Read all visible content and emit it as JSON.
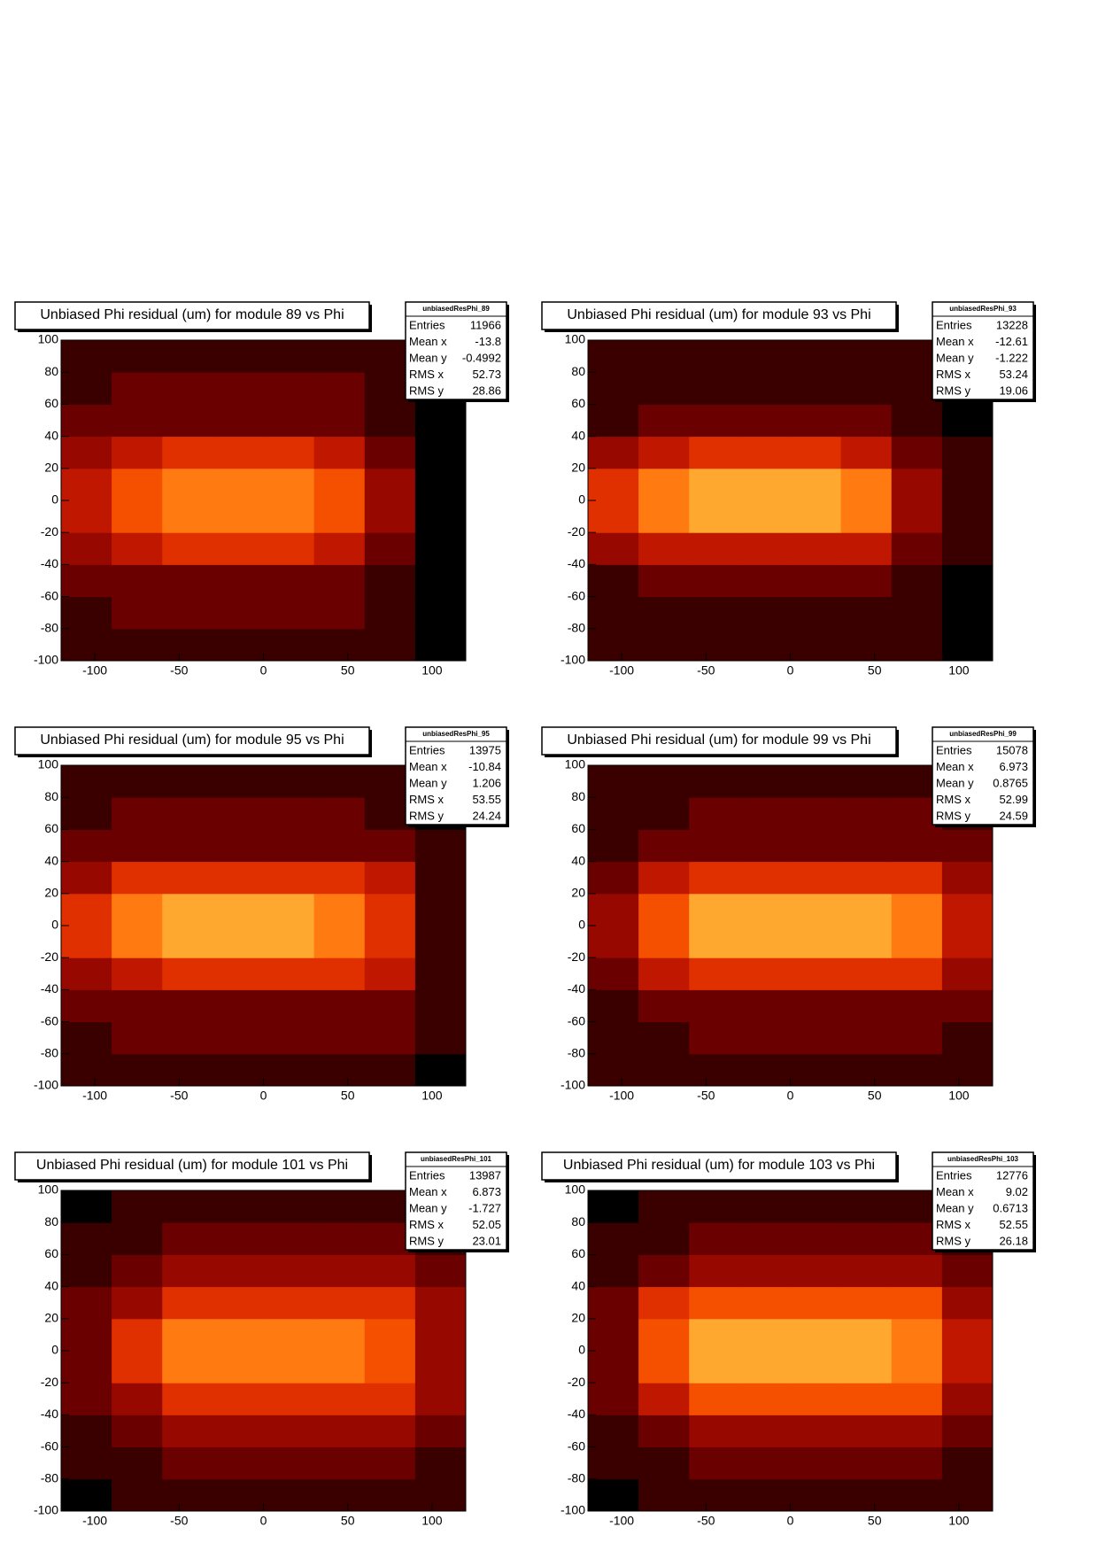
{
  "colormap": [
    "#000000",
    "#3a0000",
    "#6a0000",
    "#960800",
    "#c01800",
    "#e03000",
    "#f55000",
    "#ff7a10",
    "#ffa830",
    "#ffd860"
  ],
  "chart_data": [
    {
      "type": "heatmap",
      "title": "Unbiased Phi residual (um) for module 89 vs Phi",
      "xlim": [
        -120,
        120
      ],
      "ylim": [
        -100,
        100
      ],
      "xticks": [
        -100,
        -50,
        0,
        50,
        100
      ],
      "yticks": [
        -100,
        -80,
        -60,
        -40,
        -20,
        0,
        20,
        40,
        60,
        80,
        100
      ],
      "xbins": [
        -120,
        -90,
        -60,
        -30,
        0,
        30,
        60,
        90,
        120
      ],
      "ybins": [
        -100,
        -80,
        -60,
        -40,
        -20,
        0,
        20,
        40,
        60,
        80,
        100
      ],
      "z": [
        [
          1,
          1,
          1,
          1,
          1,
          1,
          1,
          0
        ],
        [
          1,
          2,
          2,
          2,
          2,
          2,
          1,
          0
        ],
        [
          2,
          2,
          2,
          2,
          2,
          2,
          1,
          0
        ],
        [
          3,
          4,
          5,
          5,
          5,
          4,
          2,
          0
        ],
        [
          4,
          6,
          7,
          7,
          7,
          6,
          3,
          0
        ],
        [
          4,
          6,
          7,
          7,
          7,
          6,
          3,
          0
        ],
        [
          3,
          4,
          5,
          5,
          5,
          4,
          2,
          0
        ],
        [
          2,
          2,
          2,
          2,
          2,
          2,
          1,
          0
        ],
        [
          1,
          2,
          2,
          2,
          2,
          2,
          1,
          0
        ],
        [
          1,
          1,
          1,
          1,
          1,
          1,
          1,
          0
        ]
      ],
      "stats": {
        "name": "unbiasedResPhi_89",
        "rows": [
          {
            "label": "Entries",
            "value": 11966
          },
          {
            "label": "Mean x",
            "value": -13.8
          },
          {
            "label": "Mean y",
            "value": -0.4992
          },
          {
            "label": "RMS x",
            "value": 52.73
          },
          {
            "label": "RMS y",
            "value": 28.86
          }
        ]
      }
    },
    {
      "type": "heatmap",
      "title": "Unbiased Phi residual (um) for module 93 vs Phi",
      "xlim": [
        -120,
        120
      ],
      "ylim": [
        -100,
        100
      ],
      "xticks": [
        -100,
        -50,
        0,
        50,
        100
      ],
      "yticks": [
        -100,
        -80,
        -60,
        -40,
        -20,
        0,
        20,
        40,
        60,
        80,
        100
      ],
      "xbins": [
        -120,
        -90,
        -60,
        -30,
        0,
        30,
        60,
        90,
        120
      ],
      "ybins": [
        -100,
        -80,
        -60,
        -40,
        -20,
        0,
        20,
        40,
        60,
        80,
        100
      ],
      "z": [
        [
          1,
          1,
          1,
          1,
          1,
          1,
          1,
          0
        ],
        [
          1,
          1,
          1,
          1,
          1,
          1,
          1,
          0
        ],
        [
          1,
          2,
          2,
          2,
          2,
          2,
          1,
          0
        ],
        [
          3,
          4,
          4,
          4,
          4,
          4,
          2,
          1
        ],
        [
          5,
          7,
          8,
          8,
          8,
          7,
          3,
          1
        ],
        [
          5,
          7,
          8,
          8,
          8,
          7,
          3,
          1
        ],
        [
          3,
          4,
          5,
          5,
          5,
          4,
          2,
          1
        ],
        [
          1,
          2,
          2,
          2,
          2,
          2,
          1,
          0
        ],
        [
          1,
          1,
          1,
          1,
          1,
          1,
          1,
          0
        ],
        [
          1,
          1,
          1,
          1,
          1,
          1,
          1,
          0
        ]
      ],
      "stats": {
        "name": "unbiasedResPhi_93",
        "rows": [
          {
            "label": "Entries",
            "value": 13228
          },
          {
            "label": "Mean x",
            "value": -12.61
          },
          {
            "label": "Mean y",
            "value": -1.222
          },
          {
            "label": "RMS x",
            "value": 53.24
          },
          {
            "label": "RMS y",
            "value": 19.06
          }
        ]
      }
    },
    {
      "type": "heatmap",
      "title": "Unbiased Phi residual (um) for module 95 vs Phi",
      "xlim": [
        -120,
        120
      ],
      "ylim": [
        -100,
        100
      ],
      "xticks": [
        -100,
        -50,
        0,
        50,
        100
      ],
      "yticks": [
        -100,
        -80,
        -60,
        -40,
        -20,
        0,
        20,
        40,
        60,
        80,
        100
      ],
      "xbins": [
        -120,
        -90,
        -60,
        -30,
        0,
        30,
        60,
        90,
        120
      ],
      "ybins": [
        -100,
        -80,
        -60,
        -40,
        -20,
        0,
        20,
        40,
        60,
        80,
        100
      ],
      "z": [
        [
          1,
          1,
          1,
          1,
          1,
          1,
          1,
          0
        ],
        [
          1,
          2,
          2,
          2,
          2,
          2,
          2,
          1
        ],
        [
          2,
          2,
          2,
          2,
          2,
          2,
          2,
          1
        ],
        [
          3,
          4,
          5,
          5,
          5,
          5,
          4,
          1
        ],
        [
          5,
          7,
          8,
          8,
          8,
          7,
          5,
          1
        ],
        [
          5,
          7,
          8,
          8,
          8,
          7,
          5,
          1
        ],
        [
          3,
          5,
          5,
          5,
          5,
          5,
          4,
          1
        ],
        [
          2,
          2,
          2,
          2,
          2,
          2,
          2,
          1
        ],
        [
          1,
          2,
          2,
          2,
          2,
          2,
          1,
          0
        ],
        [
          1,
          1,
          1,
          1,
          1,
          1,
          1,
          0
        ]
      ],
      "stats": {
        "name": "unbiasedResPhi_95",
        "rows": [
          {
            "label": "Entries",
            "value": 13975
          },
          {
            "label": "Mean x",
            "value": -10.84
          },
          {
            "label": "Mean y",
            "value": 1.206
          },
          {
            "label": "RMS x",
            "value": 53.55
          },
          {
            "label": "RMS y",
            "value": 24.24
          }
        ]
      }
    },
    {
      "type": "heatmap",
      "title": "Unbiased Phi residual (um) for module 99 vs Phi",
      "xlim": [
        -120,
        120
      ],
      "ylim": [
        -100,
        100
      ],
      "xticks": [
        -100,
        -50,
        0,
        50,
        100
      ],
      "yticks": [
        -100,
        -80,
        -60,
        -40,
        -20,
        0,
        20,
        40,
        60,
        80,
        100
      ],
      "xbins": [
        -120,
        -90,
        -60,
        -30,
        0,
        30,
        60,
        90,
        120
      ],
      "ybins": [
        -100,
        -80,
        -60,
        -40,
        -20,
        0,
        20,
        40,
        60,
        80,
        100
      ],
      "z": [
        [
          1,
          1,
          1,
          1,
          1,
          1,
          1,
          1
        ],
        [
          1,
          1,
          2,
          2,
          2,
          2,
          2,
          1
        ],
        [
          1,
          2,
          2,
          2,
          2,
          2,
          2,
          2
        ],
        [
          2,
          4,
          5,
          5,
          5,
          5,
          5,
          3
        ],
        [
          3,
          6,
          8,
          8,
          8,
          8,
          7,
          4
        ],
        [
          3,
          6,
          8,
          8,
          8,
          8,
          7,
          4
        ],
        [
          2,
          4,
          5,
          5,
          5,
          5,
          5,
          3
        ],
        [
          1,
          2,
          2,
          2,
          2,
          2,
          2,
          2
        ],
        [
          1,
          1,
          2,
          2,
          2,
          2,
          2,
          1
        ],
        [
          1,
          1,
          1,
          1,
          1,
          1,
          1,
          1
        ]
      ],
      "stats": {
        "name": "unbiasedResPhi_99",
        "rows": [
          {
            "label": "Entries",
            "value": 15078
          },
          {
            "label": "Mean x",
            "value": 6.973
          },
          {
            "label": "Mean y",
            "value": 0.8765
          },
          {
            "label": "RMS x",
            "value": 52.99
          },
          {
            "label": "RMS y",
            "value": 24.59
          }
        ]
      }
    },
    {
      "type": "heatmap",
      "title": "Unbiased Phi residual (um) for module 101 vs Phi",
      "xlim": [
        -120,
        120
      ],
      "ylim": [
        -100,
        100
      ],
      "xticks": [
        -100,
        -50,
        0,
        50,
        100
      ],
      "yticks": [
        -100,
        -80,
        -60,
        -40,
        -20,
        0,
        20,
        40,
        60,
        80,
        100
      ],
      "xbins": [
        -120,
        -90,
        -60,
        -30,
        0,
        30,
        60,
        90,
        120
      ],
      "ybins": [
        -100,
        -80,
        -60,
        -40,
        -20,
        0,
        20,
        40,
        60,
        80,
        100
      ],
      "z": [
        [
          0,
          1,
          1,
          1,
          1,
          1,
          1,
          1
        ],
        [
          1,
          1,
          2,
          2,
          2,
          2,
          2,
          1
        ],
        [
          1,
          2,
          3,
          3,
          3,
          3,
          3,
          2
        ],
        [
          2,
          3,
          5,
          5,
          5,
          5,
          5,
          3
        ],
        [
          2,
          5,
          7,
          7,
          7,
          7,
          6,
          3
        ],
        [
          2,
          5,
          7,
          7,
          7,
          7,
          6,
          3
        ],
        [
          2,
          3,
          5,
          5,
          5,
          5,
          5,
          3
        ],
        [
          1,
          2,
          3,
          3,
          3,
          3,
          3,
          2
        ],
        [
          1,
          1,
          2,
          2,
          2,
          2,
          2,
          1
        ],
        [
          0,
          1,
          1,
          1,
          1,
          1,
          1,
          1
        ]
      ],
      "stats": {
        "name": "unbiasedResPhi_101",
        "rows": [
          {
            "label": "Entries",
            "value": 13987
          },
          {
            "label": "Mean x",
            "value": 6.873
          },
          {
            "label": "Mean y",
            "value": -1.727
          },
          {
            "label": "RMS x",
            "value": 52.05
          },
          {
            "label": "RMS y",
            "value": 23.01
          }
        ]
      }
    },
    {
      "type": "heatmap",
      "title": "Unbiased Phi residual (um) for module 103 vs Phi",
      "xlim": [
        -120,
        120
      ],
      "ylim": [
        -100,
        100
      ],
      "xticks": [
        -100,
        -50,
        0,
        50,
        100
      ],
      "yticks": [
        -100,
        -80,
        -60,
        -40,
        -20,
        0,
        20,
        40,
        60,
        80,
        100
      ],
      "xbins": [
        -120,
        -90,
        -60,
        -30,
        0,
        30,
        60,
        90,
        120
      ],
      "ybins": [
        -100,
        -80,
        -60,
        -40,
        -20,
        0,
        20,
        40,
        60,
        80,
        100
      ],
      "z": [
        [
          0,
          1,
          1,
          1,
          1,
          1,
          1,
          1
        ],
        [
          1,
          1,
          2,
          2,
          2,
          2,
          2,
          1
        ],
        [
          1,
          2,
          3,
          3,
          3,
          3,
          3,
          2
        ],
        [
          2,
          4,
          6,
          6,
          6,
          6,
          6,
          3
        ],
        [
          2,
          6,
          8,
          8,
          8,
          8,
          7,
          4
        ],
        [
          2,
          6,
          8,
          8,
          8,
          8,
          7,
          4
        ],
        [
          2,
          5,
          6,
          6,
          6,
          6,
          6,
          3
        ],
        [
          1,
          2,
          3,
          3,
          3,
          3,
          3,
          2
        ],
        [
          1,
          1,
          2,
          2,
          2,
          2,
          2,
          1
        ],
        [
          0,
          1,
          1,
          1,
          1,
          1,
          1,
          1
        ]
      ],
      "stats": {
        "name": "unbiasedResPhi_103",
        "rows": [
          {
            "label": "Entries",
            "value": 12776
          },
          {
            "label": "Mean x",
            "value": 9.02
          },
          {
            "label": "Mean y",
            "value": 0.6713
          },
          {
            "label": "RMS x",
            "value": 52.55
          },
          {
            "label": "RMS y",
            "value": 26.18
          }
        ]
      }
    }
  ]
}
